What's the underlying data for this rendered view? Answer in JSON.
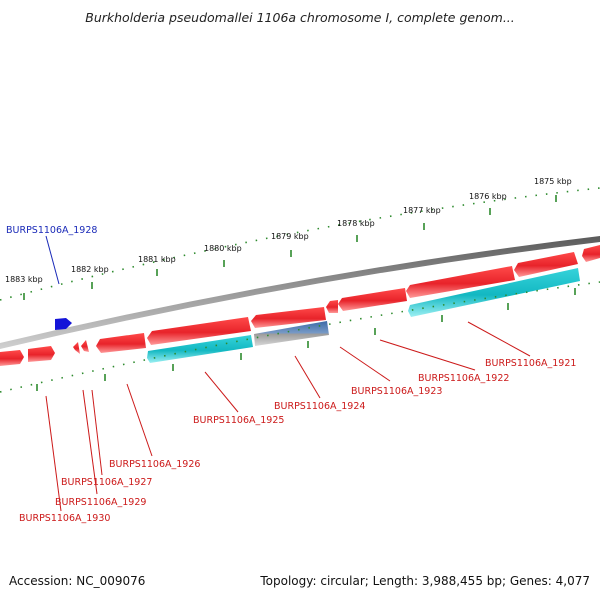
{
  "title": "Burkholderia pseudomallei 1106a chromosome I, complete genom...",
  "footer": {
    "accession": "Accession: NC_009076",
    "summary": "Topology: circular; Length: 3,988,455 bp; Genes: 4,077"
  },
  "colors": {
    "backbone": "#7a7a7a",
    "forward_gene": "#e8232a",
    "reverse_gene": "#20c4cc",
    "selected_gene": "#5a7fae",
    "highlight_gene": "#1414d8",
    "forward_label": "#cc1a1a",
    "highlight_label": "#1a2ab8",
    "ticks": "#2e8b2e"
  },
  "scale_labels": [
    "1883 kbp",
    "1882 kbp",
    "1881 kbp",
    "1880 kbp",
    "1879 kbp",
    "1878 kbp",
    "1877 kbp",
    "1876 kbp",
    "1875 kbp"
  ],
  "gene_labels": [
    {
      "id": "label-burps1106a-1928",
      "text": "BURPS1106A_1928",
      "color": "highlight"
    },
    {
      "id": "label-burps1106a-1921",
      "text": "BURPS1106A_1921",
      "color": "red"
    },
    {
      "id": "label-burps1106a-1922",
      "text": "BURPS1106A_1922",
      "color": "red"
    },
    {
      "id": "label-burps1106a-1923",
      "text": "BURPS1106A_1923",
      "color": "red"
    },
    {
      "id": "label-burps1106a-1924",
      "text": "BURPS1106A_1924",
      "color": "red"
    },
    {
      "id": "label-burps1106a-1925",
      "text": "BURPS1106A_1925",
      "color": "red"
    },
    {
      "id": "label-burps1106a-1926",
      "text": "BURPS1106A_1926",
      "color": "red"
    },
    {
      "id": "label-burps1106a-1927",
      "text": "BURPS1106A_1927",
      "color": "red"
    },
    {
      "id": "label-burps1106a-1929",
      "text": "BURPS1106A_1929",
      "color": "red"
    },
    {
      "id": "label-burps1106a-1930",
      "text": "BURPS1106A_1930",
      "color": "red"
    }
  ]
}
